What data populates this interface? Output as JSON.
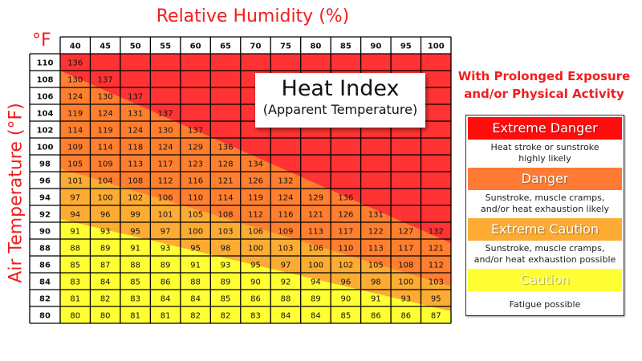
{
  "chart_data": {
    "type": "table",
    "title": "Heat Index",
    "subtitle": "(Apparent Temperature)",
    "xlabel": "Relative Humidity (%)",
    "ylabel": "Air Temperature (°F)",
    "unit_label": "°F",
    "humidity": [
      40,
      45,
      50,
      55,
      60,
      65,
      70,
      75,
      80,
      85,
      90,
      95,
      100
    ],
    "temperatures": [
      110,
      108,
      106,
      104,
      102,
      100,
      98,
      96,
      94,
      92,
      90,
      88,
      86,
      84,
      82,
      80
    ],
    "values": [
      [
        136
      ],
      [
        130,
        137
      ],
      [
        124,
        130,
        137
      ],
      [
        119,
        124,
        131,
        137
      ],
      [
        114,
        119,
        124,
        130,
        137
      ],
      [
        109,
        114,
        118,
        124,
        129,
        136
      ],
      [
        105,
        109,
        113,
        117,
        123,
        128,
        134
      ],
      [
        101,
        104,
        108,
        112,
        116,
        121,
        126,
        132
      ],
      [
        97,
        100,
        102,
        106,
        110,
        114,
        119,
        124,
        129,
        136
      ],
      [
        94,
        96,
        99,
        101,
        105,
        108,
        112,
        116,
        121,
        126,
        131
      ],
      [
        91,
        93,
        95,
        97,
        100,
        103,
        106,
        109,
        113,
        117,
        122,
        127,
        132
      ],
      [
        88,
        89,
        91,
        93,
        95,
        98,
        100,
        103,
        106,
        110,
        113,
        117,
        121
      ],
      [
        85,
        87,
        88,
        89,
        91,
        93,
        95,
        97,
        100,
        102,
        105,
        108,
        112
      ],
      [
        83,
        84,
        85,
        86,
        88,
        89,
        90,
        92,
        94,
        96,
        98,
        100,
        103
      ],
      [
        81,
        82,
        83,
        84,
        84,
        85,
        86,
        88,
        89,
        90,
        91,
        93,
        95
      ],
      [
        80,
        80,
        81,
        81,
        82,
        82,
        83,
        84,
        84,
        85,
        86,
        86,
        87
      ]
    ],
    "colors": {
      "extreme_danger": "#ff3333",
      "danger": "#ff7f2f",
      "extreme_caution": "#fdac33",
      "caution": "#ffff33",
      "title": "#f21d1d"
    }
  },
  "legend": {
    "heading_line1": "With Prolonged Exposure",
    "heading_line2": "and/or Physical Activity",
    "categories": [
      {
        "label": "Extreme Danger",
        "desc1": "Heat stroke or sunstroke",
        "desc2": "highly likely",
        "color": "#ff0d0d"
      },
      {
        "label": "Danger",
        "desc1": "Sunstroke, muscle cramps,",
        "desc2": "and/or heat exhaustion likely",
        "color": "#ff7b33"
      },
      {
        "label": "Extreme Caution",
        "desc1": "Sunstroke, muscle cramps,",
        "desc2": "and/or heat exhaustion possible",
        "color": "#fdab33"
      },
      {
        "label": "Caution",
        "desc1": "Fatigue possible",
        "desc2": "",
        "color": "#ffff33"
      }
    ]
  }
}
